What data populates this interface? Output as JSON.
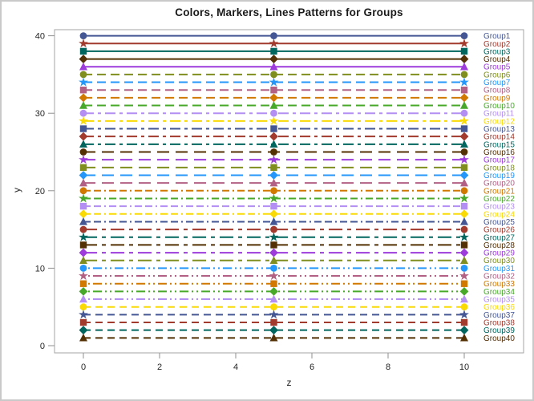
{
  "chart_data": {
    "type": "line",
    "title": "Colors, Markers, Lines Patterns for Groups",
    "xlabel": "z",
    "ylabel": "y",
    "x_ticks": [
      0,
      2,
      4,
      6,
      8,
      10
    ],
    "y_ticks": [
      0,
      10,
      20,
      30,
      40
    ],
    "x_range": [
      0,
      10
    ],
    "y_range": [
      0,
      40
    ],
    "marker_x": [
      0,
      5,
      10
    ],
    "grid": "off",
    "legend_position": "right-inside-labels",
    "line_patterns": {
      "solid": "",
      "dash": "11 6",
      "dashdot": "13 5 4 5",
      "longdash": "15 8",
      "dashdashdot": "9 4 9 4 2 4",
      "longdashshortdash": "17 6 5 6",
      "dotdotdash": "2 4 2 4 11 4",
      "mediumdash": "9 6"
    },
    "series": [
      {
        "name": "Group1",
        "y": 40,
        "color": "#445694",
        "marker": "circle",
        "pattern": "solid"
      },
      {
        "name": "Group2",
        "y": 39,
        "color": "#A23A2E",
        "marker": "star",
        "pattern": "solid"
      },
      {
        "name": "Group3",
        "y": 38,
        "color": "#01665E",
        "marker": "square",
        "pattern": "solid"
      },
      {
        "name": "Group4",
        "y": 37,
        "color": "#543005",
        "marker": "diamond",
        "pattern": "solid"
      },
      {
        "name": "Group5",
        "y": 36,
        "color": "#9D3CDB",
        "marker": "triangle",
        "pattern": "solid"
      },
      {
        "name": "Group6",
        "y": 35,
        "color": "#7F8E1F",
        "marker": "circle",
        "pattern": "dash"
      },
      {
        "name": "Group7",
        "y": 34,
        "color": "#2597FA",
        "marker": "star",
        "pattern": "dash"
      },
      {
        "name": "Group8",
        "y": 33,
        "color": "#B26084",
        "marker": "square",
        "pattern": "dash"
      },
      {
        "name": "Group9",
        "y": 32,
        "color": "#D17800",
        "marker": "diamond",
        "pattern": "dash"
      },
      {
        "name": "Group10",
        "y": 31,
        "color": "#47A82A",
        "marker": "triangle",
        "pattern": "dash"
      },
      {
        "name": "Group11",
        "y": 30,
        "color": "#B38EF3",
        "marker": "circle",
        "pattern": "dashdot"
      },
      {
        "name": "Group12",
        "y": 29,
        "color": "#F9DA04",
        "marker": "star",
        "pattern": "dashdot"
      },
      {
        "name": "Group13",
        "y": 28,
        "color": "#445694",
        "marker": "square",
        "pattern": "dashdot"
      },
      {
        "name": "Group14",
        "y": 27,
        "color": "#A23A2E",
        "marker": "diamond",
        "pattern": "dashdot"
      },
      {
        "name": "Group15",
        "y": 26,
        "color": "#01665E",
        "marker": "triangle",
        "pattern": "dashdot"
      },
      {
        "name": "Group16",
        "y": 25,
        "color": "#543005",
        "marker": "circle",
        "pattern": "longdash"
      },
      {
        "name": "Group17",
        "y": 24,
        "color": "#9D3CDB",
        "marker": "star",
        "pattern": "longdash"
      },
      {
        "name": "Group18",
        "y": 23,
        "color": "#7F8E1F",
        "marker": "square",
        "pattern": "longdash"
      },
      {
        "name": "Group19",
        "y": 22,
        "color": "#2597FA",
        "marker": "diamond",
        "pattern": "longdash"
      },
      {
        "name": "Group20",
        "y": 21,
        "color": "#B26084",
        "marker": "triangle",
        "pattern": "longdash"
      },
      {
        "name": "Group21",
        "y": 20,
        "color": "#D17800",
        "marker": "circle",
        "pattern": "dashdashdot"
      },
      {
        "name": "Group22",
        "y": 19,
        "color": "#47A82A",
        "marker": "star",
        "pattern": "dashdashdot"
      },
      {
        "name": "Group23",
        "y": 18,
        "color": "#B38EF3",
        "marker": "square",
        "pattern": "dashdashdot"
      },
      {
        "name": "Group24",
        "y": 17,
        "color": "#F9DA04",
        "marker": "diamond",
        "pattern": "dashdashdot"
      },
      {
        "name": "Group25",
        "y": 16,
        "color": "#445694",
        "marker": "triangle",
        "pattern": "dashdashdot"
      },
      {
        "name": "Group26",
        "y": 15,
        "color": "#A23A2E",
        "marker": "circle",
        "pattern": "longdashshortdash"
      },
      {
        "name": "Group27",
        "y": 14,
        "color": "#01665E",
        "marker": "star",
        "pattern": "longdashshortdash"
      },
      {
        "name": "Group28",
        "y": 13,
        "color": "#543005",
        "marker": "square",
        "pattern": "longdashshortdash"
      },
      {
        "name": "Group29",
        "y": 12,
        "color": "#9D3CDB",
        "marker": "diamond",
        "pattern": "longdashshortdash"
      },
      {
        "name": "Group30",
        "y": 11,
        "color": "#7F8E1F",
        "marker": "triangle",
        "pattern": "longdashshortdash"
      },
      {
        "name": "Group31",
        "y": 10,
        "color": "#2597FA",
        "marker": "circle",
        "pattern": "dotdotdash"
      },
      {
        "name": "Group32",
        "y": 9,
        "color": "#B26084",
        "marker": "star",
        "pattern": "dotdotdash"
      },
      {
        "name": "Group33",
        "y": 8,
        "color": "#D17800",
        "marker": "square",
        "pattern": "dotdotdash"
      },
      {
        "name": "Group34",
        "y": 7,
        "color": "#47A82A",
        "marker": "diamond",
        "pattern": "dotdotdash"
      },
      {
        "name": "Group35",
        "y": 6,
        "color": "#B38EF3",
        "marker": "triangle",
        "pattern": "dotdotdash"
      },
      {
        "name": "Group36",
        "y": 5,
        "color": "#F9DA04",
        "marker": "circle",
        "pattern": "mediumdash"
      },
      {
        "name": "Group37",
        "y": 4,
        "color": "#445694",
        "marker": "star",
        "pattern": "mediumdash"
      },
      {
        "name": "Group38",
        "y": 3,
        "color": "#A23A2E",
        "marker": "square",
        "pattern": "mediumdash"
      },
      {
        "name": "Group39",
        "y": 2,
        "color": "#01665E",
        "marker": "diamond",
        "pattern": "mediumdash"
      },
      {
        "name": "Group40",
        "y": 1,
        "color": "#543005",
        "marker": "triangle",
        "pattern": "mediumdash"
      }
    ],
    "colors": {
      "title_text": "#1a1a1a",
      "axis_text": "#262626",
      "plot_border": "#a6a6a6",
      "tick_mark": "#8f8f8f",
      "background": "#ffffff"
    }
  }
}
